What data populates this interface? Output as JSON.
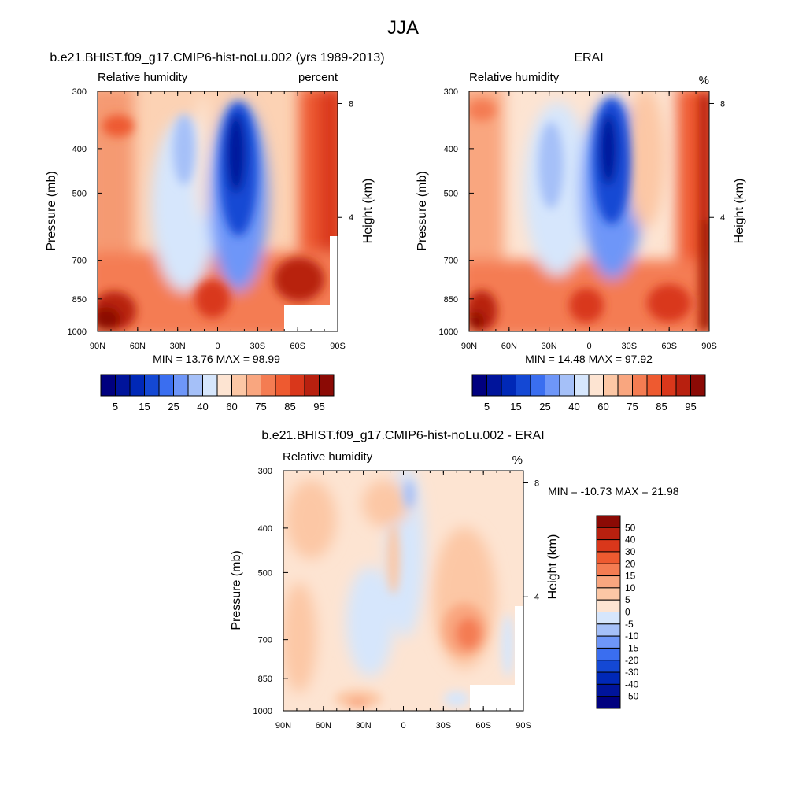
{
  "figure": {
    "title": "JJA",
    "panels": {
      "model": {
        "title": "b.e21.BHIST.f09_g17.CMIP6-hist-noLu.002 (yrs 1989-2013)",
        "left_label": "Relative humidity",
        "right_label": "percent",
        "y_label": "Pressure (mb)",
        "right_axis_label": "Height (km)",
        "stats": "MIN =  13.76  MAX =  98.99"
      },
      "obs": {
        "title": "ERAI",
        "left_label": "Relative humidity",
        "right_label": "%",
        "y_label": "Pressure (mb)",
        "right_axis_label": "Height (km)",
        "stats": "MIN =  14.48  MAX =  97.92"
      },
      "diff": {
        "title": "b.e21.BHIST.f09_g17.CMIP6-hist-noLu.002 - ERAI",
        "left_label": "Relative humidity",
        "right_label": "%",
        "y_label": "Pressure (mb)",
        "right_axis_label": "Height (km)",
        "stats": "MIN = -10.73  MAX =  21.98"
      }
    }
  },
  "chart_data": [
    {
      "type": "heatmap",
      "panel": "model",
      "title": "b.e21.BHIST.f09_g17.CMIP6-hist-noLu.002 (yrs 1989-2013)",
      "variable": "Relative humidity",
      "units": "percent",
      "xlabel": "",
      "ylabel": "Pressure (mb)",
      "x_ticks": [
        "90N",
        "60N",
        "30N",
        "0",
        "30S",
        "60S",
        "90S"
      ],
      "y_ticks": [
        300,
        400,
        500,
        700,
        850,
        1000
      ],
      "y2_label": "Height (km)",
      "y2_ticks": [
        8,
        4
      ],
      "min": 13.76,
      "max": 98.99,
      "colorbar": {
        "levels": [
          5,
          10,
          15,
          20,
          25,
          30,
          40,
          50,
          60,
          65,
          70,
          75,
          80,
          85,
          90,
          95
        ],
        "labels": [
          "5",
          "15",
          "25",
          "40",
          "60",
          "75",
          "85",
          "95"
        ],
        "colors": [
          "#00007f",
          "#00149b",
          "#0028b7",
          "#1448d4",
          "#3a6ef0",
          "#6e96f8",
          "#a5c0f8",
          "#d6e6fc",
          "#fde4d2",
          "#fcc7a5",
          "#f9a67f",
          "#f47c52",
          "#ee5a30",
          "#d9371b",
          "#b8200f",
          "#8b0a05"
        ]
      }
    },
    {
      "type": "heatmap",
      "panel": "obs",
      "title": "ERAI",
      "variable": "Relative humidity",
      "units": "%",
      "xlabel": "",
      "ylabel": "Pressure (mb)",
      "x_ticks": [
        "90N",
        "60N",
        "30N",
        "0",
        "30S",
        "60S",
        "90S"
      ],
      "y_ticks": [
        300,
        400,
        500,
        700,
        850,
        1000
      ],
      "y2_label": "Height (km)",
      "y2_ticks": [
        8,
        4
      ],
      "min": 14.48,
      "max": 97.92,
      "colorbar": {
        "levels": [
          5,
          10,
          15,
          20,
          25,
          30,
          40,
          50,
          60,
          65,
          70,
          75,
          80,
          85,
          90,
          95
        ],
        "labels": [
          "5",
          "15",
          "25",
          "40",
          "60",
          "75",
          "85",
          "95"
        ],
        "colors": [
          "#00007f",
          "#00149b",
          "#0028b7",
          "#1448d4",
          "#3a6ef0",
          "#6e96f8",
          "#a5c0f8",
          "#d6e6fc",
          "#fde4d2",
          "#fcc7a5",
          "#f9a67f",
          "#f47c52",
          "#ee5a30",
          "#d9371b",
          "#b8200f",
          "#8b0a05"
        ]
      }
    },
    {
      "type": "heatmap",
      "panel": "diff",
      "title": "b.e21.BHIST.f09_g17.CMIP6-hist-noLu.002 - ERAI",
      "variable": "Relative humidity",
      "units": "%",
      "xlabel": "",
      "ylabel": "Pressure (mb)",
      "x_ticks": [
        "90N",
        "60N",
        "30N",
        "0",
        "30S",
        "60S",
        "90S"
      ],
      "y_ticks": [
        300,
        400,
        500,
        700,
        850,
        1000
      ],
      "y2_label": "Height (km)",
      "y2_ticks": [
        8,
        4
      ],
      "min": -10.73,
      "max": 21.98,
      "colorbar": {
        "levels": [
          -50,
          -40,
          -30,
          -20,
          -15,
          -10,
          -5,
          0,
          5,
          10,
          15,
          20,
          30,
          40,
          50
        ],
        "labels": [
          "50",
          "40",
          "30",
          "20",
          "15",
          "10",
          "5",
          "0",
          "-5",
          "-10",
          "-15",
          "-20",
          "-30",
          "-40",
          "-50"
        ],
        "colors": [
          "#8b0a05",
          "#b8200f",
          "#d9371b",
          "#ee5a30",
          "#f47c52",
          "#f9a67f",
          "#fcc7a5",
          "#fde4d2",
          "#d6e6fc",
          "#a5c0f8",
          "#6e96f8",
          "#3a6ef0",
          "#1448d4",
          "#0028b7",
          "#00149b",
          "#00007f"
        ]
      }
    }
  ]
}
